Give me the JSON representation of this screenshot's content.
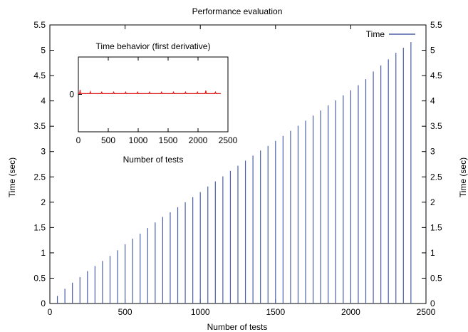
{
  "chart_data": [
    {
      "type": "bar",
      "title": "Performance evaluation",
      "xlabel": "Number of tests",
      "ylabel": "Time (sec)",
      "y2label": "Time (sec)",
      "xlim": [
        0,
        2500
      ],
      "ylim": [
        0,
        5.5
      ],
      "xticks": [
        "0",
        "500",
        "1000",
        "1500",
        "2000",
        "2500"
      ],
      "yticks": [
        "0",
        "0.5",
        "1",
        "1.5",
        "2",
        "2.5",
        "3",
        "3.5",
        "4",
        "4.5",
        "5",
        "5.5"
      ],
      "legend": {
        "position": "top-right",
        "entries": [
          "Time"
        ]
      },
      "series": [
        {
          "name": "Time",
          "color": "#4a5fa8",
          "x": [
            50,
            100,
            150,
            200,
            250,
            300,
            350,
            400,
            450,
            500,
            550,
            600,
            650,
            700,
            750,
            800,
            850,
            900,
            950,
            1000,
            1050,
            1100,
            1150,
            1200,
            1250,
            1300,
            1350,
            1400,
            1450,
            1500,
            1550,
            1600,
            1650,
            1700,
            1750,
            1800,
            1850,
            1900,
            1950,
            2000,
            2050,
            2100,
            2150,
            2200,
            2250,
            2300,
            2350,
            2400
          ],
          "values": [
            0.15,
            0.29,
            0.41,
            0.52,
            0.64,
            0.74,
            0.84,
            0.94,
            1.05,
            1.17,
            1.28,
            1.38,
            1.49,
            1.6,
            1.71,
            1.8,
            1.9,
            2.0,
            2.1,
            2.2,
            2.31,
            2.41,
            2.51,
            2.62,
            2.72,
            2.82,
            2.92,
            3.02,
            3.11,
            3.21,
            3.31,
            3.41,
            3.51,
            3.61,
            3.71,
            3.81,
            3.91,
            4.01,
            4.11,
            4.21,
            4.31,
            4.43,
            4.58,
            4.7,
            4.82,
            4.95,
            5.05,
            5.16
          ]
        }
      ]
    },
    {
      "type": "line",
      "title": "Time behavior (first derivative)",
      "xlabel": "Number of tests",
      "xlim": [
        0,
        2500
      ],
      "ylim": [
        -1,
        1
      ],
      "xticks": [
        "0",
        "500",
        "1000",
        "1500",
        "2000",
        "2500"
      ],
      "yticks": [
        "0"
      ],
      "series": [
        {
          "color": "#e01b1b",
          "x": [
            0,
            20,
            30,
            35,
            45,
            60,
            100,
            150,
            190,
            200,
            210,
            300,
            380,
            390,
            400,
            500,
            580,
            590,
            600,
            700,
            780,
            790,
            800,
            900,
            980,
            990,
            1000,
            1100,
            1180,
            1190,
            1200,
            1300,
            1380,
            1390,
            1400,
            1500,
            1580,
            1590,
            1600,
            1700,
            1780,
            1790,
            1800,
            1900,
            1980,
            1990,
            2000,
            2100,
            2120,
            2130,
            2140,
            2200,
            2280,
            2290,
            2300,
            2380
          ],
          "values": [
            0.02,
            0.02,
            0.12,
            0.02,
            0.03,
            0.02,
            0.02,
            0.02,
            0.02,
            0.07,
            0.02,
            0.02,
            0.02,
            0.06,
            0.02,
            0.02,
            0.02,
            0.06,
            0.02,
            0.02,
            0.02,
            0.06,
            0.02,
            0.02,
            0.02,
            0.06,
            0.02,
            0.02,
            0.02,
            0.06,
            0.02,
            0.02,
            0.02,
            0.06,
            0.02,
            0.02,
            0.02,
            0.06,
            0.02,
            0.02,
            0.02,
            0.06,
            0.02,
            0.02,
            0.02,
            0.06,
            0.02,
            0.02,
            0.02,
            0.1,
            0.02,
            0.02,
            0.02,
            0.06,
            0.02,
            0.02
          ]
        }
      ]
    }
  ]
}
